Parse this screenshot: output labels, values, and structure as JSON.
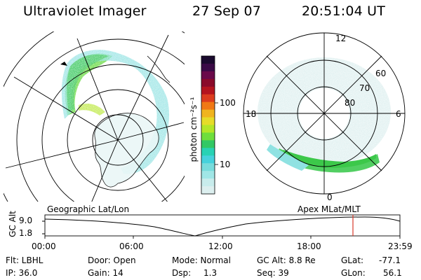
{
  "header": {
    "title": "Ultraviolet Imager",
    "date": "27 Sep 07",
    "time": "20:51:04 UT"
  },
  "colorbar": {
    "label": "photon cm⁻²s⁻¹",
    "ticks": [
      "100",
      "10"
    ],
    "colors": [
      "#1a0a2e",
      "#3a0a46",
      "#6a0a4a",
      "#8a0a2a",
      "#b4141e",
      "#dc3c1e",
      "#f07814",
      "#f0b41e",
      "#e6dc28",
      "#b4e628",
      "#6ede3c",
      "#32c864",
      "#28d2b4",
      "#46d2dc",
      "#78dcdc",
      "#a0e6e6",
      "#c8ecec",
      "#dcefef"
    ]
  },
  "left_map": {
    "caption": "Geographic Lat/Lon"
  },
  "right_map": {
    "caption": "Apex MLat/MLT",
    "mlt_labels": {
      "top": "12",
      "left": "18",
      "right": "6",
      "bottom": "0"
    },
    "lat_labels": [
      "60",
      "70",
      "80"
    ]
  },
  "timeline": {
    "ylabel": "GC Alt",
    "y_ticks": [
      "9.0",
      "1.8"
    ],
    "x_ticks": [
      "00:00",
      "06:00",
      "12:00",
      "18:00",
      "23:59"
    ],
    "marker_color": "#d83a2a"
  },
  "status": {
    "flt": "Flt: LBHL",
    "ip": "IP: 36.0",
    "door": "Door: Open",
    "gain": "Gain: 14",
    "mode": "Mode: Normal",
    "dsp_label": "Dsp:",
    "dsp_value": "1.3",
    "gcalt": "GC Alt: 8.8 Re",
    "seq": "Seq: 39",
    "glat_label": "GLat:",
    "glat_value": "-77.1",
    "glon_label": "GLon:",
    "glon_value": "56.1"
  }
}
